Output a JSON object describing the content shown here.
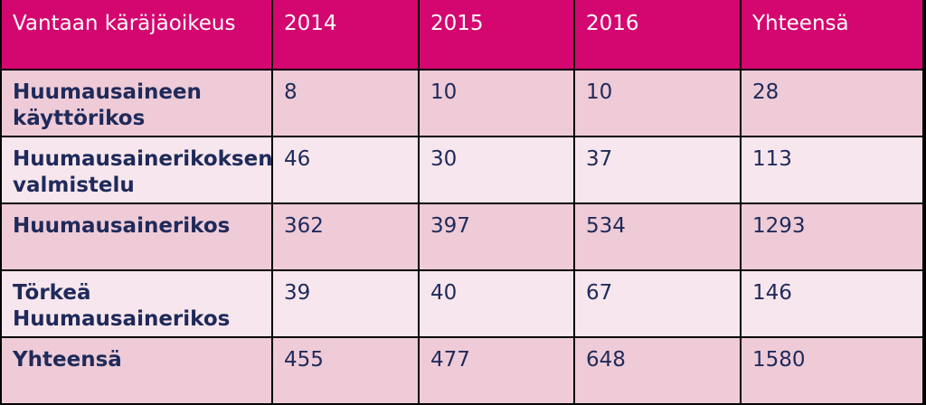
{
  "table": {
    "header": [
      "Vantaan käräjäoikeus",
      "2014",
      "2015",
      "2016",
      "Yhteensä"
    ],
    "rows": [
      [
        "Huumausaineen käyttörikos",
        8,
        10,
        10,
        28
      ],
      [
        "Huumausainerikoksen valmistelu",
        46,
        30,
        37,
        113
      ],
      [
        "Huumausainerikos",
        362,
        397,
        534,
        1293
      ],
      [
        "Törkeä Huumausainerikos",
        39,
        40,
        67,
        146
      ],
      [
        "Yhteensä",
        455,
        477,
        648,
        1580
      ]
    ]
  }
}
